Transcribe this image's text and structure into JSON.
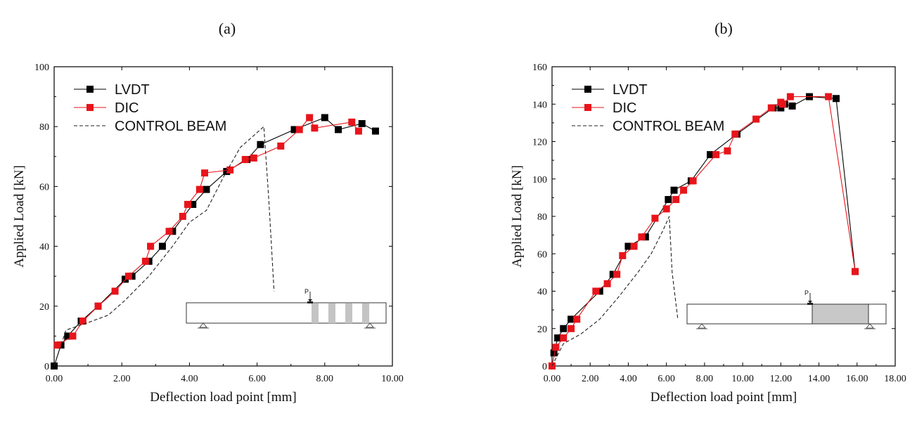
{
  "chart_data": [
    {
      "type": "line",
      "panel_label": "(a)",
      "xlabel": "Deflection load point [mm]",
      "ylabel": "Applied Load [kN]",
      "xlim": [
        0,
        10
      ],
      "ylim": [
        0,
        100
      ],
      "xticks": [
        "0.00",
        "2.00",
        "4.00",
        "6.00",
        "8.00",
        "10.00"
      ],
      "yticks": [
        "0",
        "20",
        "40",
        "60",
        "80",
        "100"
      ],
      "legend": {
        "position": "top-left",
        "entries": [
          "LVDT",
          "DIC",
          "CONTROL BEAM"
        ]
      },
      "series": [
        {
          "name": "LVDT",
          "color": "#000000",
          "marker": "square",
          "style": "solid",
          "x": [
            0,
            0.2,
            0.4,
            0.8,
            1.3,
            2.1,
            2.3,
            2.8,
            3.2,
            3.5,
            4.1,
            4.5,
            5.1,
            5.7,
            6.1,
            7.1,
            8.0,
            8.4,
            9.1,
            9.5
          ],
          "y": [
            0,
            7,
            10,
            15,
            20,
            29,
            30,
            35,
            40,
            45,
            54,
            59,
            65,
            69,
            74,
            79,
            83,
            79,
            81,
            78.5
          ]
        },
        {
          "name": "DIC",
          "color": "#e8141b",
          "marker": "square",
          "style": "solid",
          "x": [
            0.1,
            0.55,
            0.85,
            1.3,
            1.8,
            2.2,
            2.7,
            2.85,
            3.4,
            3.8,
            3.95,
            4.3,
            4.45,
            5.2,
            5.65,
            5.9,
            6.7,
            7.25,
            7.55,
            7.7,
            8.8,
            9.0
          ],
          "y": [
            7,
            10,
            15,
            20,
            25,
            30,
            35,
            40,
            45,
            50,
            54,
            59,
            64.5,
            65.5,
            69,
            69.5,
            73.5,
            79,
            83,
            79.5,
            81.5,
            78.5
          ]
        },
        {
          "name": "CONTROL BEAM",
          "color": "#222222",
          "marker": "none",
          "style": "dashed",
          "x": [
            0,
            0.35,
            1.0,
            1.6,
            2.1,
            2.8,
            3.5,
            4.0,
            4.5,
            5.0,
            5.5,
            6.0,
            6.2,
            6.35,
            6.5
          ],
          "y": [
            0,
            12,
            14.5,
            17,
            22,
            30,
            40,
            48,
            52,
            63,
            73,
            78,
            80,
            55,
            25
          ]
        }
      ],
      "inset": {
        "load_label": "P",
        "kind": "four-plates"
      }
    },
    {
      "type": "line",
      "panel_label": "(b)",
      "xlabel": "Deflection load point [mm]",
      "ylabel": "Applied Load [kN]",
      "xlim": [
        0,
        18
      ],
      "ylim": [
        0,
        160
      ],
      "xticks": [
        "0.00",
        "2.00",
        "4.00",
        "6.00",
        "8.00",
        "10.00",
        "12.00",
        "14.00",
        "16.00",
        "18.00"
      ],
      "yticks": [
        "0",
        "20",
        "40",
        "60",
        "80",
        "100",
        "120",
        "140",
        "160"
      ],
      "legend": {
        "position": "top-left",
        "entries": [
          "LVDT",
          "DIC",
          "CONTROL BEAM"
        ]
      },
      "series": [
        {
          "name": "LVDT",
          "color": "#000000",
          "marker": "square",
          "style": "solid",
          "x": [
            0.1,
            0.3,
            0.6,
            1.0,
            2.5,
            3.2,
            4.0,
            4.9,
            6.1,
            6.4,
            7.3,
            8.3,
            9.7,
            11.6,
            12.0,
            12.2,
            12.6,
            13.5,
            14.9,
            15.9
          ],
          "y": [
            7,
            15,
            20,
            25,
            40,
            49,
            64,
            69,
            89,
            94,
            99,
            113,
            124,
            138,
            138,
            140,
            139,
            144,
            143,
            50.5
          ]
        },
        {
          "name": "DIC",
          "color": "#e8141b",
          "marker": "square",
          "style": "solid",
          "x": [
            0,
            0.2,
            0.6,
            1.0,
            1.3,
            2.3,
            2.9,
            3.4,
            3.7,
            4.3,
            4.7,
            5.4,
            6.0,
            6.5,
            6.9,
            7.4,
            8.6,
            9.2,
            9.6,
            10.7,
            11.5,
            12.0,
            12.1,
            12.5,
            14.5,
            15.9
          ],
          "y": [
            0,
            10,
            15,
            20,
            25,
            40,
            44,
            49,
            59,
            64,
            69,
            79,
            84,
            89,
            94,
            99,
            113,
            115,
            124,
            132,
            138,
            141,
            140,
            144,
            144,
            50.5
          ]
        },
        {
          "name": "CONTROL BEAM",
          "color": "#222222",
          "marker": "none",
          "style": "dashed",
          "x": [
            0,
            0.6,
            1.5,
            2.5,
            3.5,
            4.5,
            5.2,
            5.8,
            6.15,
            6.3,
            6.6
          ],
          "y": [
            0,
            12,
            17,
            25,
            37,
            50,
            60,
            72,
            80,
            50,
            25
          ]
        }
      ],
      "inset": {
        "load_label": "P",
        "kind": "shaded-block"
      }
    }
  ]
}
